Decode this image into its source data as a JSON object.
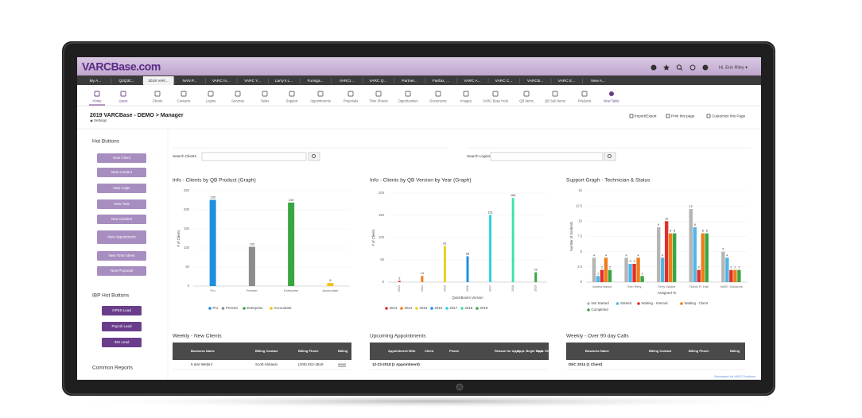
{
  "header": {
    "logo": "VARCBase.com",
    "user_greeting": "Hi, Erin Riley ▾"
  },
  "tabs": [
    "My A...",
    "Q2Q3C...",
    "2019 VAR...",
    "NAN P...",
    "VARC In...",
    "VARC Y...",
    "Larry's L...",
    "Fumiga...",
    "VARCI...",
    "VARC Q...",
    "Partner...",
    "Fairfax, ...",
    "VARC A...",
    "VARC C...",
    "VARCB...",
    "VARC E...",
    "New A..."
  ],
  "toolbar": [
    "Home",
    "Users",
    "Clients",
    "Contacts",
    "Logins",
    "Services",
    "Tasks",
    "Support",
    "Appointments",
    "Proposals",
    "Time Sheets",
    "Opportunities",
    "Documents",
    "Images",
    "VARC Base Help",
    "QB Items",
    "QB Sub Items",
    "Products",
    "New Table"
  ],
  "page": {
    "title": "2019 VARCBase - DEMO > Manager",
    "settings": "Settings",
    "actions": [
      "Import/Export",
      "Print this page",
      "Customize this Page"
    ]
  },
  "sidebar": {
    "hot_buttons_title": "Hot Buttons",
    "hot_buttons": [
      "New Client",
      "New Contact",
      "New Login",
      "New Task",
      "New Incident",
      "New Appointment",
      "New Time Sheet",
      "New Proposal"
    ],
    "ibp_title": "IBP Hot Buttons",
    "ibp_buttons": [
      "OPES Lead",
      "Payroll Lead",
      "INS Lead"
    ],
    "common_reports": "Common Reports"
  },
  "search": [
    "Search Clients",
    "Search Logins"
  ],
  "chart_data": [
    {
      "type": "bar",
      "title": "Info - Clients by QB Product (Graph)",
      "y_label": "# of Clients",
      "categories": [
        "Pro",
        "Premier",
        "Enterprise",
        "Accountant"
      ],
      "values": [
        226,
        103,
        219,
        8
      ],
      "colors": [
        "#1f8fe0",
        "#8c8c8c",
        "#3aa640",
        "#f2c21b"
      ],
      "ylim": [
        0,
        250
      ],
      "yticks": [
        0,
        50,
        100,
        150,
        200,
        250
      ],
      "grid": true
    },
    {
      "type": "bar",
      "title": "Info - Clients by QB Version by Year (Graph)",
      "y_label": "# of Clients",
      "x_label": "QuickBooks Version",
      "categories": [
        "2013",
        "2014",
        "2015",
        "2016",
        "2017",
        "2018",
        "2019"
      ],
      "values": [
        3,
        14,
        81,
        58,
        151,
        189,
        22
      ],
      "colors": [
        "#e0302a",
        "#f07d1a",
        "#e8d21c",
        "#1f8fe0",
        "#2ed1e8",
        "#3de0b0",
        "#3aa640"
      ],
      "ylim": [
        0,
        200
      ],
      "yticks": [
        0,
        50,
        100,
        150,
        200
      ],
      "grid": true
    },
    {
      "type": "grouped-bar",
      "title": "Support Graph - Technician & Status",
      "y_label": "Number of Incidents",
      "x_label": "Assigned To",
      "categories": [
        "Amelia Banks",
        "Erin Riley",
        "Terry Vacker",
        "Robin R. Hall",
        "VARC Solutions"
      ],
      "series": [
        {
          "name": "Not Started",
          "color": "#b5b5b5",
          "values": [
            4,
            4,
            9,
            12,
            5
          ]
        },
        {
          "name": "Started",
          "color": "#4fb6e8",
          "values": [
            1,
            3,
            4,
            9,
            4
          ]
        },
        {
          "name": "Waiting - Internal",
          "color": "#e0302a",
          "values": [
            2,
            3,
            10,
            2,
            2
          ]
        },
        {
          "name": "Waiting - Client",
          "color": "#f07d1a",
          "values": [
            4,
            4,
            8,
            8,
            2
          ]
        },
        {
          "name": "Completed",
          "color": "#3aa640",
          "values": [
            2,
            1,
            8,
            8,
            2
          ]
        }
      ],
      "ylim": [
        0,
        15
      ],
      "yticks": [
        0,
        2.5,
        5,
        7.5,
        10,
        12.5,
        15
      ],
      "grid": true
    }
  ],
  "tables": [
    {
      "title": "Weekly - New Clients",
      "headers": [
        "Business Name",
        "Billing Contact",
        "Billing Phone",
        "Billing"
      ],
      "rows": [
        [
          "5 star Webinl",
          "Scott Abbassi",
          "(409) 922-4619",
          "www"
        ]
      ]
    },
    {
      "title": "Upcoming Appointments",
      "headers": [
        "Appointment With",
        "Client",
        "Phone",
        "Reason for Appt",
        "Appt. Begin Time",
        "Appt. End"
      ],
      "rows": [
        [
          "12-23-2018 (1 Appointment)"
        ]
      ]
    },
    {
      "title": "Weekly - Over 90 day Calls",
      "headers": [
        "Business Name",
        "Billing Contact",
        "Billing Phone",
        "Billing"
      ],
      "rows": [
        [
          "DEC 2014 (1 Client)"
        ]
      ]
    }
  ],
  "footer": "Developed for VARC Solutions"
}
